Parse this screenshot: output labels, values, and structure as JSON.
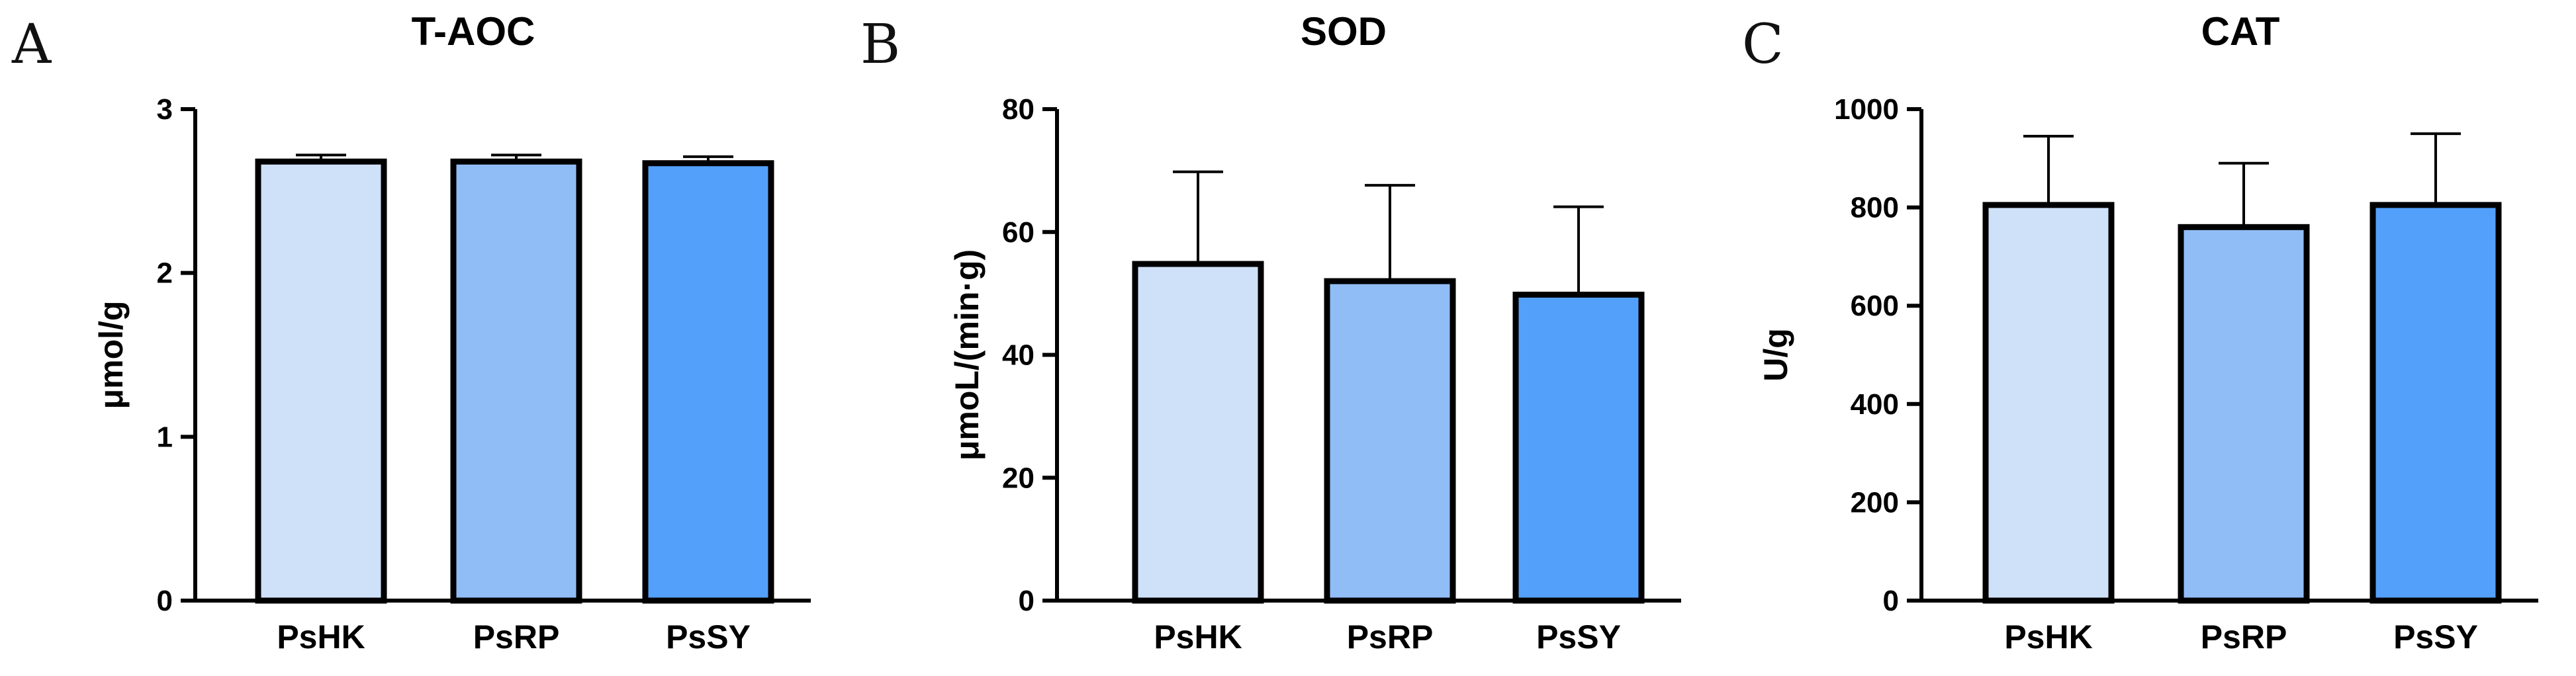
{
  "chart_data": [
    {
      "panel": "A",
      "type": "bar",
      "title": "T-AOC",
      "xlabel": "",
      "ylabel": "μmol/g",
      "categories": [
        "PsHK",
        "PsRP",
        "PsSY"
      ],
      "values": [
        2.68,
        2.68,
        2.67
      ],
      "errors": [
        0.04,
        0.04,
        0.04
      ],
      "ylim": [
        0,
        3
      ],
      "yticks": [
        0,
        1,
        2,
        3
      ],
      "colors": [
        "#cfe1f8",
        "#91bdf6",
        "#53a0fa"
      ]
    },
    {
      "panel": "B",
      "type": "bar",
      "title": "SOD",
      "xlabel": "",
      "ylabel": "μmoL/(min·g)",
      "categories": [
        "PsHK",
        "PsRP",
        "PsSY"
      ],
      "values": [
        54.8,
        52,
        49.8
      ],
      "errors": [
        15,
        15.6,
        14.3
      ],
      "ylim": [
        0,
        80
      ],
      "yticks": [
        0,
        20,
        40,
        60,
        80
      ],
      "colors": [
        "#cfe1f8",
        "#91bdf6",
        "#53a0fa"
      ]
    },
    {
      "panel": "C",
      "type": "bar",
      "title": "CAT",
      "xlabel": "",
      "ylabel": "U/g",
      "categories": [
        "PsHK",
        "PsRP",
        "PsSY"
      ],
      "values": [
        805,
        760,
        805
      ],
      "errors": [
        140,
        130,
        145
      ],
      "ylim": [
        0,
        1000
      ],
      "yticks": [
        0,
        200,
        400,
        600,
        800,
        1000
      ],
      "colors": [
        "#cfe1f8",
        "#91bdf6",
        "#53a0fa"
      ]
    }
  ]
}
